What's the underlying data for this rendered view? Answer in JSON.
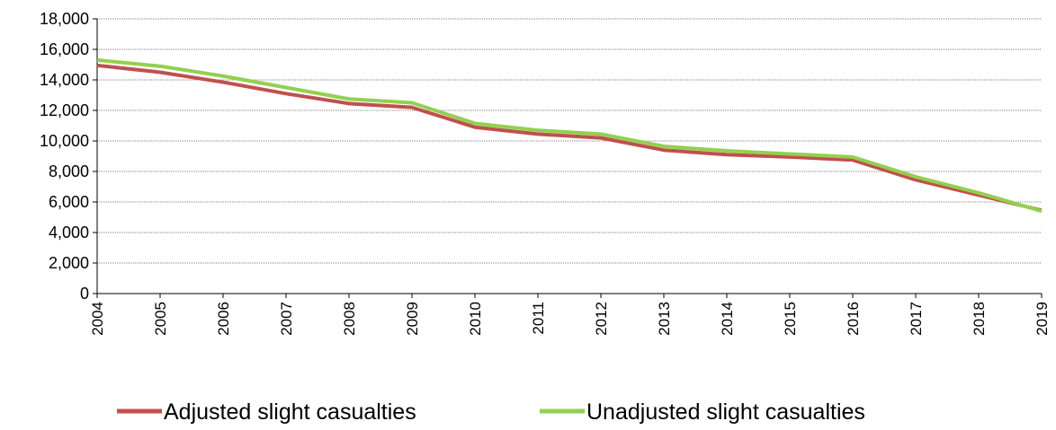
{
  "chart_data": {
    "type": "line",
    "title": "",
    "xlabel": "",
    "ylabel": "",
    "categories": [
      "2004",
      "2005",
      "2006",
      "2007",
      "2008",
      "2009",
      "2010",
      "2011",
      "2012",
      "2013",
      "2014",
      "2015",
      "2016",
      "2017",
      "2018",
      "2019"
    ],
    "ylim": [
      0,
      18000
    ],
    "yticks": [
      0,
      2000,
      4000,
      6000,
      8000,
      10000,
      12000,
      14000,
      16000,
      18000
    ],
    "ytick_labels": [
      "0",
      "2,000",
      "4,000",
      "6,000",
      "8,000",
      "10,000",
      "12,000",
      "14,000",
      "16,000",
      "18,000"
    ],
    "grid": true,
    "legend_position": "bottom",
    "series": [
      {
        "name": "Adjusted slight casualties",
        "color": "#c0504d",
        "values": [
          14950,
          14500,
          13850,
          13100,
          12450,
          12200,
          10900,
          10450,
          10200,
          9400,
          9100,
          8950,
          8750,
          7450,
          6450,
          5450
        ]
      },
      {
        "name": "Unadjusted slight casualties",
        "color": "#92d050",
        "values": [
          15300,
          14900,
          14250,
          13500,
          12750,
          12500,
          11150,
          10700,
          10450,
          9650,
          9350,
          9150,
          8950,
          7650,
          6600,
          5400
        ]
      }
    ]
  }
}
